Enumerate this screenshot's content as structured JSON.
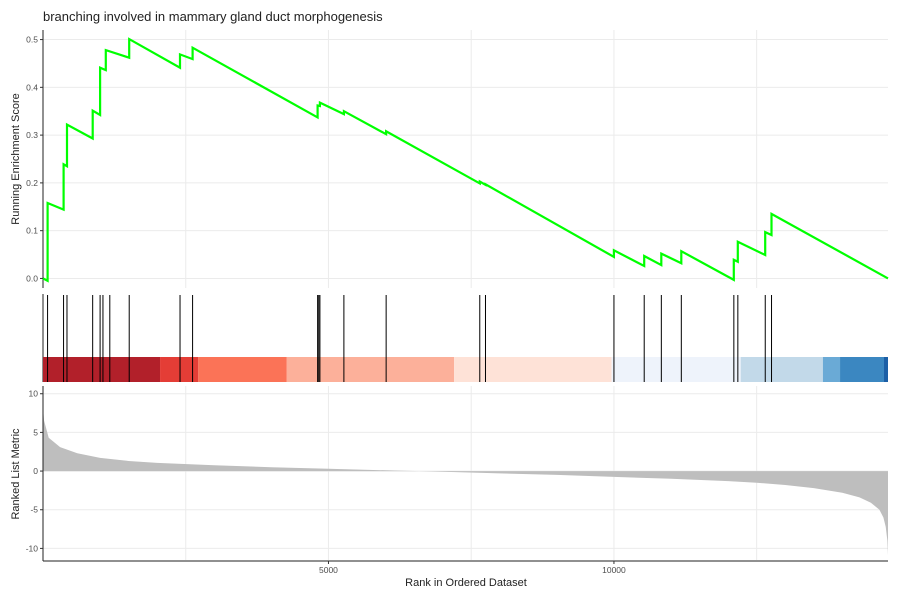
{
  "title": "branching involved in mammary gland duct morphogenesis",
  "chart_data": [
    {
      "type": "line",
      "panel": "running-enrichment-score",
      "ylabel": "Running Enrichment Score",
      "yticks": [
        "0.0",
        "0.1",
        "0.2",
        "0.3",
        "0.4",
        "0.5"
      ],
      "ytick_values": [
        0,
        0.1,
        0.2,
        0.3,
        0.4,
        0.5
      ],
      "xlim": [
        0,
        14800
      ],
      "ylim": [
        -0.02,
        0.52
      ],
      "x_grid": [
        2500,
        5000,
        7500,
        10000,
        12500
      ],
      "line_color": "#00ff00",
      "x": [
        0,
        80,
        80,
        360,
        360,
        420,
        420,
        870,
        870,
        1000,
        1000,
        1100,
        1100,
        1510,
        1510,
        2400,
        2400,
        2620,
        2620,
        4810,
        4810,
        4850,
        4850,
        5270,
        5270,
        6010,
        6010,
        7650,
        7650,
        7750,
        7750,
        10000,
        10000,
        10530,
        10530,
        10830,
        10830,
        11180,
        11180,
        12100,
        12100,
        12170,
        12170,
        12650,
        12650,
        12760,
        12760,
        14800
      ],
      "y": [
        0.0,
        -0.005,
        0.158,
        0.144,
        0.239,
        0.235,
        0.322,
        0.293,
        0.351,
        0.342,
        0.441,
        0.436,
        0.478,
        0.462,
        0.501,
        0.441,
        0.469,
        0.459,
        0.483,
        0.337,
        0.362,
        0.361,
        0.368,
        0.344,
        0.35,
        0.302,
        0.308,
        0.199,
        0.203,
        0.196,
        0.197,
        0.045,
        0.059,
        0.026,
        0.047,
        0.028,
        0.052,
        0.032,
        0.057,
        -0.003,
        0.039,
        0.035,
        0.077,
        0.049,
        0.097,
        0.091,
        0.135,
        0.0
      ]
    },
    {
      "type": "scatter",
      "panel": "gene-hits",
      "hits": [
        80,
        360,
        420,
        870,
        1000,
        1050,
        1170,
        1510,
        2400,
        2620,
        4810,
        4830,
        4850,
        5270,
        6010,
        7650,
        7750,
        10000,
        10530,
        10830,
        11180,
        12100,
        12170,
        12650,
        12760
      ],
      "color_bar": [
        {
          "from": 0,
          "to": 2050,
          "color": "#b2202a"
        },
        {
          "from": 2050,
          "to": 2720,
          "color": "#e43d36"
        },
        {
          "from": 2720,
          "to": 4270,
          "color": "#fb7357"
        },
        {
          "from": 4270,
          "to": 7200,
          "color": "#fcb09a"
        },
        {
          "from": 7200,
          "to": 9960,
          "color": "#fee2d7"
        },
        {
          "from": 9960,
          "to": 12220,
          "color": "#eef3fb"
        },
        {
          "from": 12220,
          "to": 13660,
          "color": "#c2d9e9"
        },
        {
          "from": 13660,
          "to": 13960,
          "color": "#6aaad6"
        },
        {
          "from": 13960,
          "to": 14730,
          "color": "#3b87c1"
        },
        {
          "from": 14730,
          "to": 14800,
          "color": "#1c5fa6"
        }
      ]
    },
    {
      "type": "area",
      "panel": "ranked-list-metric",
      "ylabel": "Ranked List Metric",
      "xlabel": "Rank in Ordered Dataset",
      "xticks": [
        "5000",
        "10000"
      ],
      "xtick_values": [
        5000,
        10000
      ],
      "yticks": [
        "10",
        "5",
        "0",
        "-5",
        "-10"
      ],
      "ytick_values": [
        10,
        5,
        0,
        -5,
        -10
      ],
      "ylim": [
        -11.5,
        11
      ],
      "fill_color": "#bebebe",
      "x": [
        0,
        20,
        100,
        300,
        600,
        1000,
        1500,
        2000,
        3000,
        4000,
        5000,
        6000,
        7000,
        8000,
        9000,
        10000,
        11000,
        12000,
        12500,
        13000,
        13500,
        14000,
        14300,
        14500,
        14650,
        14720,
        14760,
        14790,
        14800
      ],
      "values": [
        8.2,
        6.5,
        4.3,
        3.1,
        2.3,
        1.7,
        1.3,
        1.05,
        0.75,
        0.5,
        0.3,
        0.1,
        -0.1,
        -0.3,
        -0.5,
        -0.75,
        -1.0,
        -1.3,
        -1.5,
        -1.8,
        -2.2,
        -2.8,
        -3.4,
        -4.1,
        -5.0,
        -6.0,
        -7.2,
        -9.0,
        -10.9
      ]
    }
  ]
}
